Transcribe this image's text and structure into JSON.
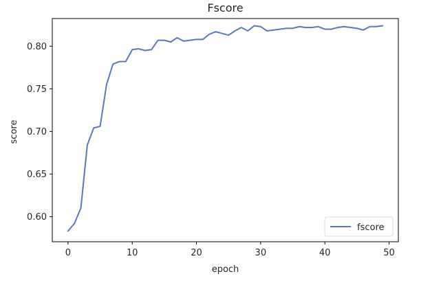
{
  "chart_data": {
    "type": "line",
    "title": "Fscore",
    "xlabel": "epoch",
    "ylabel": "score",
    "xlim": [
      -2.45,
      51.45
    ],
    "ylim": [
      0.5705,
      0.8325
    ],
    "x_ticks": [
      0,
      10,
      20,
      30,
      40,
      50
    ],
    "y_ticks": [
      0.6,
      0.65,
      0.7,
      0.75,
      0.8
    ],
    "grid": false,
    "legend_position": "lower right",
    "series": [
      {
        "name": "fscore",
        "color": "#5578c6",
        "x": [
          0,
          1,
          2,
          3,
          4,
          5,
          6,
          7,
          8,
          9,
          10,
          11,
          12,
          13,
          14,
          15,
          16,
          17,
          18,
          19,
          20,
          21,
          22,
          23,
          24,
          25,
          26,
          27,
          28,
          29,
          30,
          31,
          32,
          33,
          34,
          35,
          36,
          37,
          38,
          39,
          40,
          41,
          42,
          43,
          44,
          45,
          46,
          47,
          48,
          49
        ],
        "values": [
          0.583,
          0.592,
          0.61,
          0.684,
          0.704,
          0.706,
          0.755,
          0.779,
          0.782,
          0.782,
          0.796,
          0.797,
          0.795,
          0.796,
          0.807,
          0.807,
          0.805,
          0.81,
          0.806,
          0.807,
          0.808,
          0.808,
          0.814,
          0.817,
          0.815,
          0.813,
          0.818,
          0.822,
          0.818,
          0.824,
          0.823,
          0.818,
          0.819,
          0.82,
          0.821,
          0.821,
          0.823,
          0.822,
          0.822,
          0.823,
          0.82,
          0.82,
          0.822,
          0.823,
          0.822,
          0.821,
          0.819,
          0.823,
          0.823,
          0.824
        ]
      }
    ]
  }
}
